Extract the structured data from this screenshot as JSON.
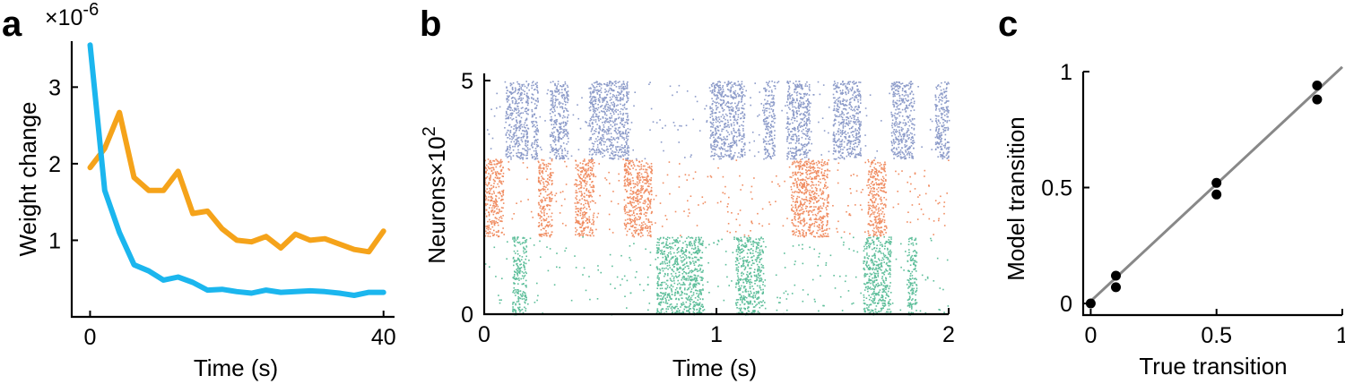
{
  "panel_letters": {
    "a": "a",
    "b": "b",
    "c": "c"
  },
  "chart_data": [
    {
      "type": "line",
      "panel": "a",
      "xlabel": "Time (s)",
      "ylabel": "Weight change",
      "scale_label": "×10",
      "scale_exponent": "-6",
      "xlim": [
        -2.5,
        41.5
      ],
      "ylim": [
        0,
        3.6
      ],
      "xticks": [
        0,
        40
      ],
      "xtick_labels": [
        "0",
        "40"
      ],
      "yticks": [
        1,
        2,
        3
      ],
      "ytick_labels": [
        "1",
        "2",
        "3"
      ],
      "grid": false,
      "series": [
        {
          "color": "#F5A31A",
          "x": [
            0,
            2,
            4,
            6,
            8,
            10,
            12,
            14,
            16,
            18,
            20,
            22,
            24,
            26,
            28,
            30,
            32,
            34,
            36,
            38,
            40
          ],
          "y": [
            1.95,
            2.2,
            2.67,
            1.82,
            1.65,
            1.65,
            1.9,
            1.35,
            1.38,
            1.15,
            1.0,
            0.98,
            1.05,
            0.9,
            1.08,
            1.0,
            1.02,
            0.95,
            0.88,
            0.85,
            1.12
          ]
        },
        {
          "color": "#1BB6EE",
          "x": [
            0,
            2,
            4,
            6,
            8,
            10,
            12,
            14,
            16,
            18,
            20,
            22,
            24,
            26,
            28,
            30,
            32,
            34,
            36,
            38,
            40
          ],
          "y": [
            3.55,
            1.65,
            1.1,
            0.68,
            0.6,
            0.48,
            0.52,
            0.45,
            0.35,
            0.36,
            0.33,
            0.31,
            0.35,
            0.32,
            0.33,
            0.34,
            0.33,
            0.31,
            0.28,
            0.32,
            0.32
          ]
        }
      ]
    },
    {
      "type": "scatter",
      "panel": "b",
      "xlabel": "Time (s)",
      "ylabel": "Neurons",
      "scale_label": "×10",
      "scale_exponent": "2",
      "xlim": [
        0,
        2
      ],
      "ylim": [
        0,
        5
      ],
      "xticks": [
        0,
        1,
        2
      ],
      "xtick_labels": [
        "0",
        "1",
        "2"
      ],
      "yticks": [
        0,
        5
      ],
      "ytick_labels": [
        "0",
        "5"
      ],
      "grid": false,
      "groups": [
        {
          "color": "#8C9BC9",
          "neuron_range": [
            3.33,
            5.0
          ],
          "bursts": [
            [
              0.09,
              0.19
            ],
            [
              0.2,
              0.23
            ],
            [
              0.28,
              0.36
            ],
            [
              0.45,
              0.62
            ],
            [
              0.97,
              1.12
            ],
            [
              1.2,
              1.25
            ],
            [
              1.3,
              1.4
            ],
            [
              1.5,
              1.62
            ],
            [
              1.75,
              1.85
            ],
            [
              1.94,
              2.0
            ]
          ],
          "background_rate": 250
        },
        {
          "color": "#F08D62",
          "neuron_range": [
            1.67,
            3.33
          ],
          "bursts": [
            [
              0.0,
              0.08
            ],
            [
              0.23,
              0.29
            ],
            [
              0.39,
              0.47
            ],
            [
              0.6,
              0.72
            ],
            [
              1.32,
              1.48
            ],
            [
              1.65,
              1.73
            ]
          ],
          "background_rate": 300
        },
        {
          "color": "#5DBE9A",
          "neuron_range": [
            0.0,
            1.67
          ],
          "bursts": [
            [
              0.12,
              0.18
            ],
            [
              0.74,
              0.94
            ],
            [
              1.08,
              1.2
            ],
            [
              1.63,
              1.75
            ],
            [
              1.82,
              1.86
            ]
          ],
          "background_rate": 250
        }
      ]
    },
    {
      "type": "scatter",
      "panel": "c",
      "xlabel": "True transition",
      "ylabel": "Model transition",
      "xlim": [
        -0.03,
        1.0
      ],
      "ylim": [
        -0.05,
        1.0
      ],
      "xticks": [
        0,
        0.5,
        1
      ],
      "xtick_labels": [
        "0",
        "0.5",
        "1"
      ],
      "yticks": [
        0,
        0.5,
        1
      ],
      "ytick_labels": [
        "0",
        "0.5",
        "1"
      ],
      "grid": false,
      "points": [
        {
          "x": 0.0,
          "y": 0.0
        },
        {
          "x": 0.1,
          "y": 0.12
        },
        {
          "x": 0.1,
          "y": 0.07
        },
        {
          "x": 0.5,
          "y": 0.52
        },
        {
          "x": 0.5,
          "y": 0.47
        },
        {
          "x": 0.9,
          "y": 0.94
        },
        {
          "x": 0.9,
          "y": 0.88
        }
      ],
      "fit_line": {
        "x": [
          0.0,
          1.0
        ],
        "y": [
          0.01,
          1.02
        ],
        "color": "#888888"
      },
      "point_color": "#000000"
    }
  ]
}
